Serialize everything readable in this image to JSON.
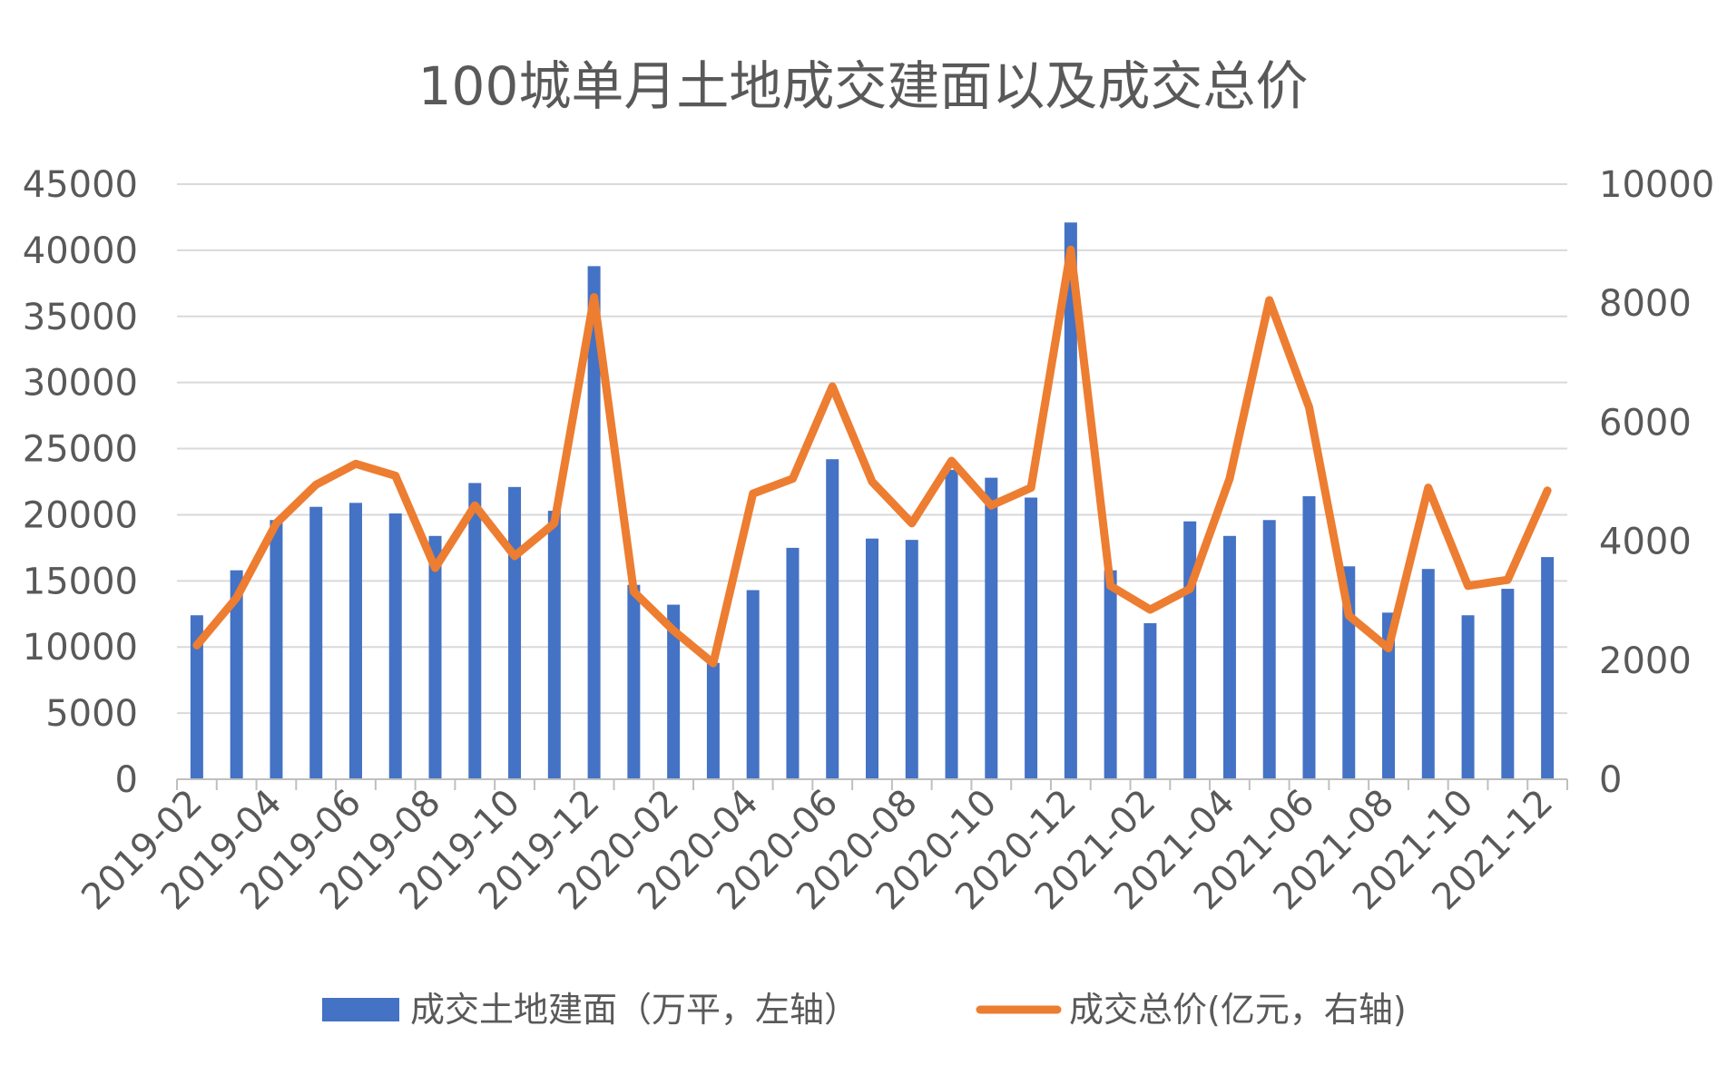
{
  "chart_data": {
    "type": "bar",
    "title": "100城单月土地成交建面以及成交总价",
    "categories": [
      "2019-02",
      "2019-03",
      "2019-04",
      "2019-05",
      "2019-06",
      "2019-07",
      "2019-08",
      "2019-09",
      "2019-10",
      "2019-11",
      "2019-12",
      "2020-01",
      "2020-02",
      "2020-03",
      "2020-04",
      "2020-05",
      "2020-06",
      "2020-07",
      "2020-08",
      "2020-09",
      "2020-10",
      "2020-11",
      "2020-12",
      "2021-01",
      "2021-02",
      "2021-03",
      "2021-04",
      "2021-05",
      "2021-06",
      "2021-07",
      "2021-08",
      "2021-09",
      "2021-10",
      "2021-11",
      "2021-12"
    ],
    "x_tick_labels": [
      "2019-02",
      "2019-04",
      "2019-06",
      "2019-08",
      "2019-10",
      "2019-12",
      "2020-02",
      "2020-04",
      "2020-06",
      "2020-08",
      "2020-10",
      "2020-12",
      "2021-02",
      "2021-04",
      "2021-06",
      "2021-08",
      "2021-10",
      "2021-12"
    ],
    "series": [
      {
        "name": "成交土地建面（万平，左轴）",
        "type": "bar",
        "axis": "left",
        "color": "#4472c4",
        "values": [
          12400,
          15800,
          19600,
          20600,
          20900,
          20100,
          18400,
          22400,
          22100,
          20300,
          38800,
          14700,
          13200,
          8800,
          14300,
          17500,
          24200,
          18200,
          18100,
          23400,
          22800,
          21300,
          42100,
          15800,
          11800,
          19500,
          18400,
          19600,
          21400,
          16100,
          12600,
          15900,
          12400,
          14400,
          16800
        ]
      },
      {
        "name": "成交总价(亿元，右轴)",
        "type": "line",
        "axis": "right",
        "color": "#ed7d31",
        "values": [
          2250,
          3050,
          4300,
          4950,
          5300,
          5100,
          3550,
          4600,
          3750,
          4300,
          8100,
          3150,
          2500,
          1950,
          4800,
          5050,
          6600,
          5000,
          4300,
          5350,
          4600,
          4900,
          8900,
          3250,
          2850,
          3200,
          5050,
          8050,
          6250,
          2750,
          2200,
          4900,
          3250,
          3350,
          4850
        ]
      }
    ],
    "y_left": {
      "ylim": [
        0,
        45000
      ],
      "ticks": [
        "0",
        "5000",
        "10000",
        "15000",
        "20000",
        "25000",
        "30000",
        "35000",
        "40000",
        "45000"
      ]
    },
    "y_right": {
      "ylim": [
        0,
        10000
      ],
      "ticks": [
        "0",
        "2000",
        "4000",
        "6000",
        "8000",
        "10000"
      ]
    },
    "grid": true,
    "legend": "bottom"
  }
}
